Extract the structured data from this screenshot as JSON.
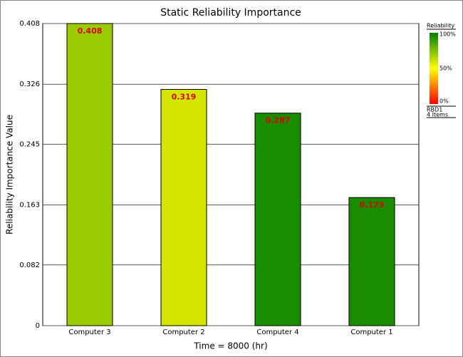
{
  "chart_data": {
    "type": "bar",
    "title": "Static Reliability Importance",
    "x_label": "Time = 8000 (hr)",
    "y_label": "Reliability Importance Value",
    "categories": [
      "Computer 3",
      "Computer 2",
      "Computer 4",
      "Computer 1"
    ],
    "values": [
      0.408,
      0.319,
      0.287,
      0.173
    ],
    "colors": [
      "#99cc00",
      "#d4e600",
      "#1a8c00",
      "#1a8c00"
    ],
    "ylim": [
      0,
      0.408
    ],
    "yticks": [
      0,
      0.082,
      0.163,
      0.245,
      0.326,
      0.408
    ],
    "grid": true,
    "legend": {
      "title": "Reliability",
      "labels": [
        "100%",
        "50%",
        "0%"
      ],
      "source": "RBD1",
      "count": "4 Items"
    }
  }
}
